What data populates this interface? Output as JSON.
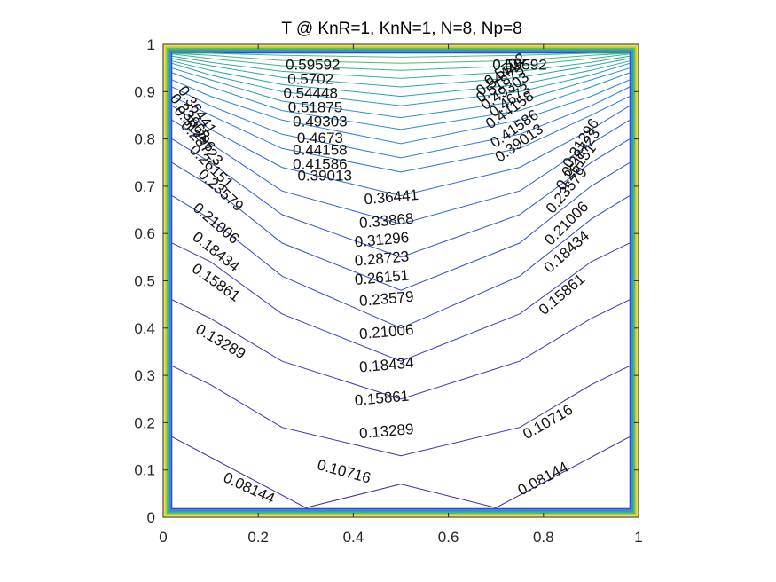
{
  "chart_data": {
    "type": "contour",
    "title": "T @ KnR=1, KnN=1, N=8, Np=8",
    "xlabel": "",
    "ylabel": "",
    "xlim": [
      0,
      1
    ],
    "ylim": [
      0,
      1
    ],
    "grid": false,
    "x_ticks": [
      {
        "value": 0,
        "label": "0"
      },
      {
        "value": 0.2,
        "label": "0.2"
      },
      {
        "value": 0.4,
        "label": "0.4"
      },
      {
        "value": 0.6,
        "label": "0.6"
      },
      {
        "value": 0.8,
        "label": "0.8"
      },
      {
        "value": 1,
        "label": "1"
      }
    ],
    "y_ticks": [
      {
        "value": 0,
        "label": "0"
      },
      {
        "value": 0.1,
        "label": "0.1"
      },
      {
        "value": 0.2,
        "label": "0.2"
      },
      {
        "value": 0.3,
        "label": "0.3"
      },
      {
        "value": 0.4,
        "label": "0.4"
      },
      {
        "value": 0.5,
        "label": "0.5"
      },
      {
        "value": 0.6,
        "label": "0.6"
      },
      {
        "value": 0.7,
        "label": "0.7"
      },
      {
        "value": 0.8,
        "label": "0.8"
      },
      {
        "value": 0.9,
        "label": "0.9"
      },
      {
        "value": 1,
        "label": "1"
      }
    ],
    "colors": {
      "low": "#3e26a8",
      "high": "#f9fb0e",
      "outer_frame": [
        "#f4e13a",
        "#b4c92f",
        "#5fbd63",
        "#27a6a8",
        "#2c7fe0",
        "#2f4ed1"
      ]
    },
    "levels": [
      0.08144,
      0.10716,
      0.13289,
      0.15861,
      0.18434,
      0.21006,
      0.23579,
      0.26151,
      0.28723,
      0.31296,
      0.33868,
      0.36441,
      0.39013,
      0.41586,
      0.44158,
      0.4673,
      0.49303,
      0.51875,
      0.54448,
      0.5702,
      0.59592
    ],
    "contours": [
      {
        "level": 0.08144,
        "x": [
          0,
          0.3,
          0.5,
          0.7,
          1
        ],
        "y": [
          0.17,
          0.02,
          0.07,
          0.02,
          0.17
        ]
      },
      {
        "level": 0.10716,
        "x": [
          0,
          0.1,
          0.25,
          0.5,
          0.75,
          0.9,
          1
        ],
        "y": [
          0.32,
          0.28,
          0.19,
          0.13,
          0.19,
          0.28,
          0.32
        ]
      },
      {
        "level": 0.13289,
        "x": [
          0,
          0.1,
          0.25,
          0.5,
          0.75,
          0.9,
          1
        ],
        "y": [
          0.46,
          0.42,
          0.33,
          0.25,
          0.33,
          0.42,
          0.46
        ]
      },
      {
        "level": 0.15861,
        "x": [
          0,
          0.1,
          0.25,
          0.5,
          0.75,
          0.9,
          1
        ],
        "y": [
          0.58,
          0.54,
          0.43,
          0.33,
          0.43,
          0.54,
          0.58
        ]
      },
      {
        "level": 0.18434,
        "x": [
          0,
          0.1,
          0.25,
          0.5,
          0.75,
          0.9,
          1
        ],
        "y": [
          0.68,
          0.63,
          0.51,
          0.4,
          0.51,
          0.63,
          0.68
        ]
      },
      {
        "level": 0.21006,
        "x": [
          0,
          0.1,
          0.25,
          0.5,
          0.75,
          0.9,
          1
        ],
        "y": [
          0.75,
          0.7,
          0.58,
          0.48,
          0.58,
          0.7,
          0.75
        ]
      },
      {
        "level": 0.23579,
        "x": [
          0,
          0.1,
          0.25,
          0.5,
          0.75,
          0.9,
          1
        ],
        "y": [
          0.8,
          0.75,
          0.64,
          0.55,
          0.64,
          0.75,
          0.8
        ]
      },
      {
        "level": 0.26151,
        "x": [
          0,
          0.1,
          0.25,
          0.5,
          0.75,
          0.9,
          1
        ],
        "y": [
          0.84,
          0.79,
          0.69,
          0.62,
          0.69,
          0.79,
          0.84
        ]
      },
      {
        "level": 0.28723,
        "x": [
          0,
          0.1,
          0.25,
          0.5,
          0.75,
          0.9,
          1
        ],
        "y": [
          0.87,
          0.82,
          0.74,
          0.68,
          0.74,
          0.82,
          0.87
        ]
      },
      {
        "level": 0.31296,
        "x": [
          0,
          0.1,
          0.25,
          0.5,
          0.75,
          0.9,
          1
        ],
        "y": [
          0.89,
          0.85,
          0.78,
          0.73,
          0.78,
          0.85,
          0.89
        ]
      },
      {
        "level": 0.33868,
        "x": [
          0,
          0.1,
          0.25,
          0.5,
          0.75,
          0.9,
          1
        ],
        "y": [
          0.91,
          0.87,
          0.81,
          0.76,
          0.81,
          0.87,
          0.91
        ]
      },
      {
        "level": 0.36441,
        "x": [
          0,
          0.1,
          0.25,
          0.5,
          0.75,
          0.9,
          1
        ],
        "y": [
          0.925,
          0.89,
          0.84,
          0.79,
          0.84,
          0.89,
          0.925
        ]
      },
      {
        "level": 0.39013,
        "x": [
          0,
          0.1,
          0.25,
          0.5,
          0.75,
          0.9,
          1
        ],
        "y": [
          0.94,
          0.91,
          0.86,
          0.82,
          0.86,
          0.91,
          0.94
        ]
      },
      {
        "level": 0.41586,
        "x": [
          0,
          0.1,
          0.25,
          0.5,
          0.75,
          0.9,
          1
        ],
        "y": [
          0.95,
          0.925,
          0.88,
          0.845,
          0.88,
          0.925,
          0.95
        ]
      },
      {
        "level": 0.44158,
        "x": [
          0,
          0.1,
          0.25,
          0.5,
          0.75,
          0.9,
          1
        ],
        "y": [
          0.96,
          0.935,
          0.9,
          0.87,
          0.9,
          0.935,
          0.96
        ]
      },
      {
        "level": 0.4673,
        "x": [
          0,
          0.1,
          0.25,
          0.5,
          0.75,
          0.9,
          1
        ],
        "y": [
          0.965,
          0.945,
          0.915,
          0.89,
          0.915,
          0.945,
          0.965
        ]
      },
      {
        "level": 0.49303,
        "x": [
          0,
          0.1,
          0.25,
          0.5,
          0.75,
          0.9,
          1
        ],
        "y": [
          0.97,
          0.955,
          0.93,
          0.91,
          0.93,
          0.955,
          0.97
        ]
      },
      {
        "level": 0.51875,
        "x": [
          0,
          0.1,
          0.25,
          0.5,
          0.75,
          0.9,
          1
        ],
        "y": [
          0.975,
          0.962,
          0.943,
          0.928,
          0.943,
          0.962,
          0.975
        ]
      },
      {
        "level": 0.54448,
        "x": [
          0,
          0.1,
          0.25,
          0.5,
          0.75,
          0.9,
          1
        ],
        "y": [
          0.98,
          0.97,
          0.955,
          0.945,
          0.955,
          0.97,
          0.98
        ]
      },
      {
        "level": 0.5702,
        "x": [
          0,
          0.1,
          0.25,
          0.5,
          0.75,
          0.9,
          1
        ],
        "y": [
          0.984,
          0.977,
          0.966,
          0.96,
          0.966,
          0.977,
          0.984
        ]
      },
      {
        "level": 0.59592,
        "x": [
          0,
          0.1,
          0.25,
          0.5,
          0.75,
          0.9,
          1
        ],
        "y": [
          0.987,
          0.983,
          0.977,
          0.973,
          0.977,
          0.983,
          0.987
        ]
      }
    ],
    "labels": [
      {
        "text": "0.59592",
        "x": 0.315,
        "y": 0.955,
        "angle": 0
      },
      {
        "text": "0.5702",
        "x": 0.31,
        "y": 0.925,
        "angle": 0
      },
      {
        "text": "0.54448",
        "x": 0.31,
        "y": 0.895,
        "angle": 0
      },
      {
        "text": "0.51875",
        "x": 0.32,
        "y": 0.865,
        "angle": 0
      },
      {
        "text": "0.49303",
        "x": 0.33,
        "y": 0.835,
        "angle": 0
      },
      {
        "text": "0.4673",
        "x": 0.33,
        "y": 0.8,
        "angle": 0
      },
      {
        "text": "0.44158",
        "x": 0.33,
        "y": 0.775,
        "angle": 0
      },
      {
        "text": "0.41586",
        "x": 0.33,
        "y": 0.745,
        "angle": 0
      },
      {
        "text": "0.39013",
        "x": 0.34,
        "y": 0.72,
        "angle": 0
      },
      {
        "text": "0.36441",
        "x": 0.48,
        "y": 0.675,
        "angle": -5
      },
      {
        "text": "0.33868",
        "x": 0.47,
        "y": 0.625,
        "angle": -5
      },
      {
        "text": "0.31296",
        "x": 0.46,
        "y": 0.585,
        "angle": -5
      },
      {
        "text": "0.28723",
        "x": 0.46,
        "y": 0.545,
        "angle": -5
      },
      {
        "text": "0.26151",
        "x": 0.46,
        "y": 0.505,
        "angle": -5
      },
      {
        "text": "0.23579",
        "x": 0.47,
        "y": 0.46,
        "angle": -5
      },
      {
        "text": "0.21006",
        "x": 0.47,
        "y": 0.39,
        "angle": -5
      },
      {
        "text": "0.18434",
        "x": 0.47,
        "y": 0.32,
        "angle": -5
      },
      {
        "text": "0.15861",
        "x": 0.46,
        "y": 0.25,
        "angle": -5
      },
      {
        "text": "0.13289",
        "x": 0.47,
        "y": 0.18,
        "angle": -5
      },
      {
        "text": "0.10716",
        "x": 0.38,
        "y": 0.095,
        "angle": 15
      },
      {
        "text": "0.08144",
        "x": 0.18,
        "y": 0.06,
        "angle": 25
      },
      {
        "text": "0.08144",
        "x": 0.8,
        "y": 0.08,
        "angle": -28
      },
      {
        "text": "0.10716",
        "x": 0.81,
        "y": 0.2,
        "angle": -30
      },
      {
        "text": "0.13289",
        "x": 0.12,
        "y": 0.37,
        "angle": 30
      },
      {
        "text": "0.15861",
        "x": 0.11,
        "y": 0.495,
        "angle": 35
      },
      {
        "text": "0.18434",
        "x": 0.11,
        "y": 0.56,
        "angle": 38
      },
      {
        "text": "0.21006",
        "x": 0.11,
        "y": 0.62,
        "angle": 40
      },
      {
        "text": "0.23579",
        "x": 0.12,
        "y": 0.69,
        "angle": 42
      },
      {
        "text": "0.26151",
        "x": 0.1,
        "y": 0.74,
        "angle": 45
      },
      {
        "text": "0.28723",
        "x": 0.08,
        "y": 0.79,
        "angle": 48
      },
      {
        "text": "0.31296",
        "x": 0.065,
        "y": 0.82,
        "angle": 50
      },
      {
        "text": "0.33868",
        "x": 0.055,
        "y": 0.845,
        "angle": 52
      },
      {
        "text": "0.36441",
        "x": 0.07,
        "y": 0.86,
        "angle": 55
      },
      {
        "text": "0.15861",
        "x": 0.84,
        "y": 0.47,
        "angle": -40
      },
      {
        "text": "0.18434",
        "x": 0.85,
        "y": 0.56,
        "angle": -42
      },
      {
        "text": "0.21006",
        "x": 0.85,
        "y": 0.62,
        "angle": -45
      },
      {
        "text": "0.23579",
        "x": 0.85,
        "y": 0.69,
        "angle": -50
      },
      {
        "text": "0.26151",
        "x": 0.87,
        "y": 0.74,
        "angle": -52
      },
      {
        "text": "0.28723",
        "x": 0.88,
        "y": 0.77,
        "angle": -55
      },
      {
        "text": "0.31296",
        "x": 0.88,
        "y": 0.79,
        "angle": -58
      },
      {
        "text": "0.39013",
        "x": 0.75,
        "y": 0.79,
        "angle": -35
      },
      {
        "text": "0.41586",
        "x": 0.74,
        "y": 0.82,
        "angle": -35
      },
      {
        "text": "0.44158",
        "x": 0.73,
        "y": 0.86,
        "angle": -35
      },
      {
        "text": "0.4673",
        "x": 0.73,
        "y": 0.88,
        "angle": -35
      },
      {
        "text": "0.49303",
        "x": 0.72,
        "y": 0.9,
        "angle": -35
      },
      {
        "text": "0.51875",
        "x": 0.71,
        "y": 0.915,
        "angle": -35
      },
      {
        "text": "0.54448",
        "x": 0.71,
        "y": 0.93,
        "angle": -35
      },
      {
        "text": "0.5702",
        "x": 0.72,
        "y": 0.945,
        "angle": -35
      },
      {
        "text": "0.59592",
        "x": 0.75,
        "y": 0.955,
        "angle": 0
      }
    ]
  }
}
